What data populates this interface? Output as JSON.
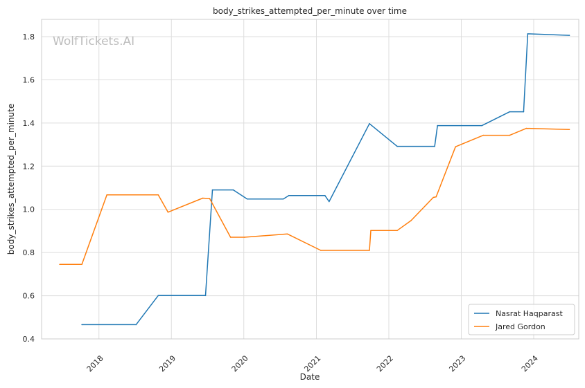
{
  "chart_data": {
    "type": "line",
    "title": "body_strikes_attempted_per_minute over time",
    "xlabel": "Date",
    "ylabel": "body_strikes_attempted_per_minute",
    "xlim": [
      "2017-03-18",
      "2024-08-15"
    ],
    "ylim": [
      0.4,
      1.88
    ],
    "x_ticks": [
      "2018",
      "2019",
      "2020",
      "2021",
      "2022",
      "2023",
      "2024"
    ],
    "y_ticks": [
      "0.4",
      "0.6",
      "0.8",
      "1.0",
      "1.2",
      "1.4",
      "1.6",
      "1.8"
    ],
    "grid": true,
    "legend_position": "bottom-right",
    "watermark": "WolfTickets.AI",
    "series": [
      {
        "name": "Nasrat Haqparast",
        "color": "#1f77b4",
        "points": [
          [
            "2017-10-07",
            0.466
          ],
          [
            "2018-07-07",
            0.466
          ],
          [
            "2018-10-27",
            0.601
          ],
          [
            "2019-06-22",
            0.601
          ],
          [
            "2019-07-27",
            1.09
          ],
          [
            "2019-11-09",
            1.09
          ],
          [
            "2020-01-18",
            1.048
          ],
          [
            "2020-07-18",
            1.048
          ],
          [
            "2020-08-15",
            1.064
          ],
          [
            "2021-02-13",
            1.064
          ],
          [
            "2021-03-06",
            1.036
          ],
          [
            "2021-09-25",
            1.397
          ],
          [
            "2022-02-12",
            1.292
          ],
          [
            "2022-08-20",
            1.292
          ],
          [
            "2022-09-03",
            1.388
          ],
          [
            "2023-04-15",
            1.388
          ],
          [
            "2023-09-02",
            1.452
          ],
          [
            "2023-11-11",
            1.452
          ],
          [
            "2023-12-02",
            1.813
          ],
          [
            "2024-06-29",
            1.806
          ]
        ]
      },
      {
        "name": "Jared Gordon",
        "color": "#ff7f0e",
        "points": [
          [
            "2017-06-17",
            0.745
          ],
          [
            "2017-10-07",
            0.745
          ],
          [
            "2018-02-10",
            1.067
          ],
          [
            "2018-10-27",
            1.067
          ],
          [
            "2018-12-15",
            0.987
          ],
          [
            "2019-06-08",
            1.052
          ],
          [
            "2019-07-13",
            1.05
          ],
          [
            "2019-10-26",
            0.871
          ],
          [
            "2020-01-04",
            0.871
          ],
          [
            "2020-08-08",
            0.886
          ],
          [
            "2021-01-23",
            0.81
          ],
          [
            "2021-09-25",
            0.81
          ],
          [
            "2021-10-02",
            0.902
          ],
          [
            "2022-02-12",
            0.902
          ],
          [
            "2022-04-23",
            0.948
          ],
          [
            "2022-08-13",
            1.055
          ],
          [
            "2022-08-27",
            1.058
          ],
          [
            "2022-12-03",
            1.29
          ],
          [
            "2023-04-22",
            1.343
          ],
          [
            "2023-09-02",
            1.343
          ],
          [
            "2023-11-25",
            1.375
          ],
          [
            "2024-06-29",
            1.37
          ]
        ]
      }
    ]
  }
}
